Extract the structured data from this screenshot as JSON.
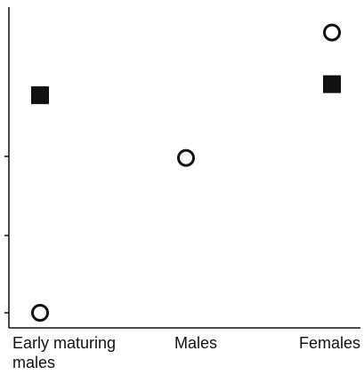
{
  "chart_data": {
    "type": "scatter",
    "categories": [
      "Early maturing\nmales",
      "Males",
      "Females"
    ],
    "series": [
      {
        "marker": "open-circle",
        "values": [
          0,
          2.1,
          3.8
        ]
      },
      {
        "marker": "filled-square",
        "values": [
          2.95,
          null,
          3.1
        ]
      }
    ],
    "ylim": [
      0,
      4
    ],
    "y_ticks_labeled": false,
    "grid": false,
    "colors": {
      "axis": "#111111",
      "marker": "#111111",
      "background": "#ffffff"
    }
  }
}
